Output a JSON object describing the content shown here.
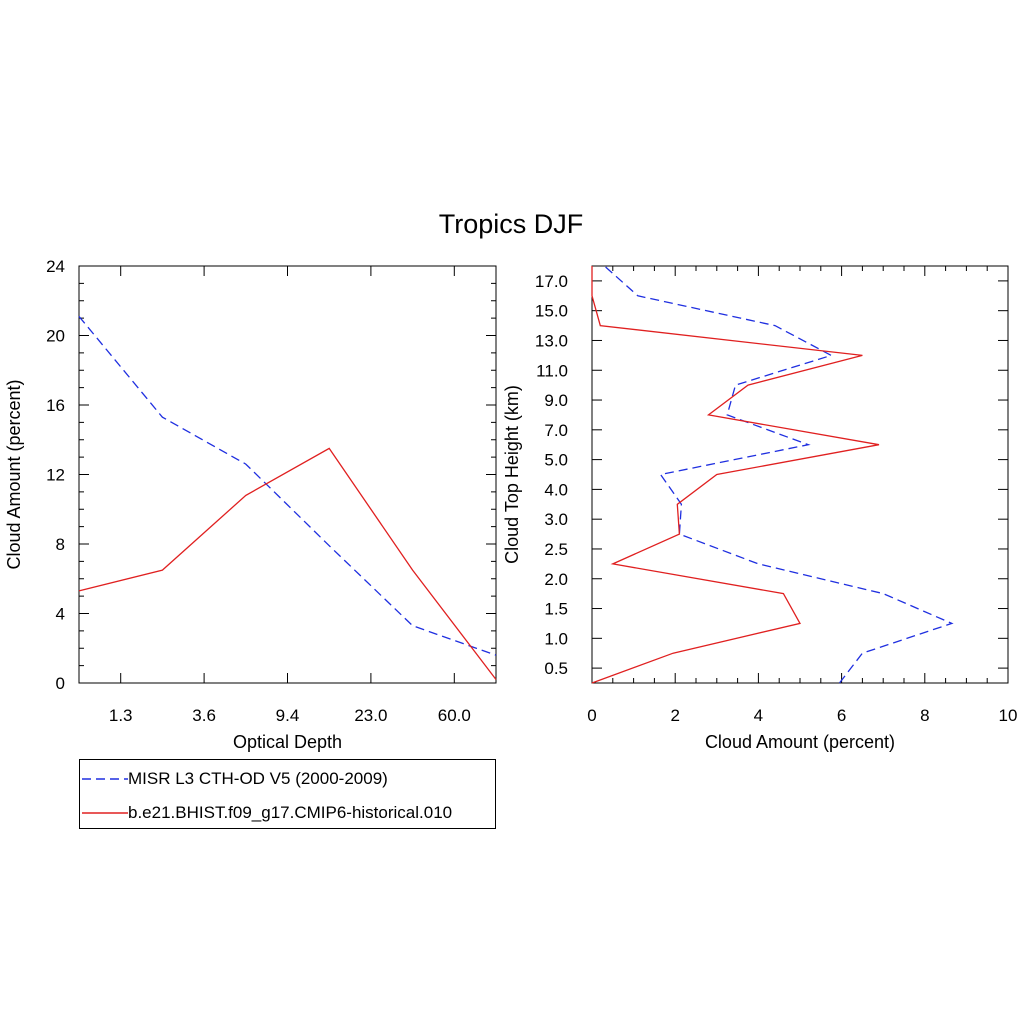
{
  "title": "Tropics DJF",
  "colors": {
    "misr": "#1f2fe0",
    "model": "#e02020",
    "axis": "#000000"
  },
  "legend": {
    "items": [
      {
        "label": "MISR L3 CTH-OD V5 (2000-2009)",
        "style": "dashed",
        "color": "#1f2fe0"
      },
      {
        "label": "b.e21.BHIST.f09_g17.CMIP6-historical.010",
        "style": "solid",
        "color": "#e02020"
      }
    ]
  },
  "chart_data": [
    {
      "type": "line",
      "xlabel": "Optical Depth",
      "ylabel": "Cloud Amount (percent)",
      "x_ticks": [
        "1.3",
        "3.6",
        "9.4",
        "23.0",
        "60.0"
      ],
      "y_ticks": [
        0,
        4,
        8,
        12,
        16,
        20,
        24
      ],
      "ylim": [
        0,
        24
      ],
      "x_positions": [
        0,
        1,
        2,
        3,
        4,
        5
      ],
      "series": [
        {
          "name": "MISR L3 CTH-OD V5 (2000-2009)",
          "style": "dashed",
          "color": "#1f2fe0",
          "values": [
            21.1,
            15.3,
            12.6,
            7.9,
            3.3,
            1.6
          ]
        },
        {
          "name": "b.e21.BHIST.f09_g17.CMIP6-historical.010",
          "style": "solid",
          "color": "#e02020",
          "values": [
            5.3,
            6.5,
            10.8,
            13.5,
            6.5,
            0.2
          ]
        }
      ]
    },
    {
      "type": "line",
      "xlabel": "Cloud Amount (percent)",
      "ylabel": "Cloud Top Height (km)",
      "x_ticks": [
        0,
        2,
        4,
        6,
        8,
        10
      ],
      "xlim": [
        0,
        10
      ],
      "y_ticks": [
        "0.5",
        "1.0",
        "1.5",
        "2.0",
        "2.5",
        "3.0",
        "4.0",
        "5.0",
        "7.0",
        "9.0",
        "11.0",
        "13.0",
        "15.0",
        "17.0"
      ],
      "y_levels": [
        0,
        1,
        2,
        3,
        4,
        5,
        6,
        7,
        8,
        9,
        10,
        11,
        12,
        13,
        14
      ],
      "series": [
        {
          "name": "MISR L3 CTH-OD V5 (2000-2009)",
          "style": "dashed",
          "color": "#1f2fe0",
          "x": [
            5.95,
            6.5,
            8.65,
            7.0,
            4.0,
            2.1,
            2.15,
            1.65,
            5.2,
            3.25,
            3.45,
            5.75,
            4.4,
            1.1,
            0.3
          ]
        },
        {
          "name": "b.e21.BHIST.f09_g17.CMIP6-historical.010",
          "style": "solid",
          "color": "#e02020",
          "x": [
            0.0,
            1.95,
            5.0,
            4.6,
            0.5,
            2.1,
            2.05,
            3.0,
            6.9,
            2.8,
            3.75,
            6.5,
            0.2,
            0.0,
            0.0
          ]
        }
      ]
    }
  ]
}
